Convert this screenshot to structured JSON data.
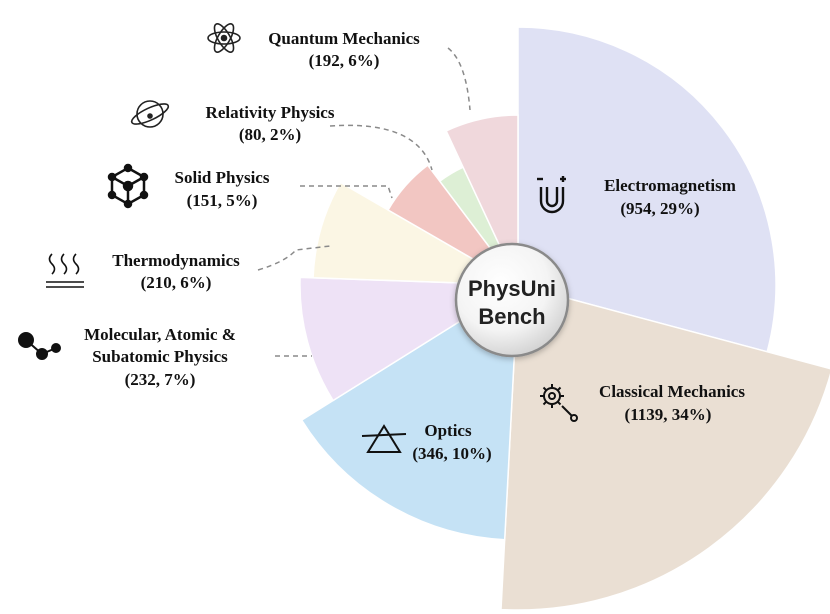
{
  "chart_data": {
    "type": "pie",
    "title": "PhysUni Bench",
    "center_label": [
      "PhysUni",
      "Bench"
    ],
    "slices": [
      {
        "name": "Electromagnetism",
        "count": 954,
        "percent": "29%",
        "color": "#dfe1f4",
        "icon": "magnet-icon"
      },
      {
        "name": "Classical Mechanics",
        "count": 1139,
        "percent": "34%",
        "color": "#eadfd3",
        "icon": "gear-wrench-icon"
      },
      {
        "name": "Optics",
        "count": 346,
        "percent": "10%",
        "color": "#c5e2f5",
        "icon": "prism-icon"
      },
      {
        "name": "Molecular, Atomic & Subatomic Physics",
        "count": 232,
        "percent": "7%",
        "color": "#eee2f6",
        "icon": "molecule-icon"
      },
      {
        "name": "Thermodynamics",
        "count": 210,
        "percent": "6%",
        "color": "#fbf6e4",
        "icon": "heat-waves-icon"
      },
      {
        "name": "Solid Physics",
        "count": 151,
        "percent": "5%",
        "color": "#f2c6c2",
        "icon": "cube-lattice-icon"
      },
      {
        "name": "Relativity Physics",
        "count": 80,
        "percent": "2%",
        "color": "#ddefd5",
        "icon": "relativity-icon"
      },
      {
        "name": "Quantum Mechanics",
        "count": 192,
        "percent": "6%",
        "color": "#f0d8dc",
        "icon": "atom-icon"
      }
    ]
  }
}
